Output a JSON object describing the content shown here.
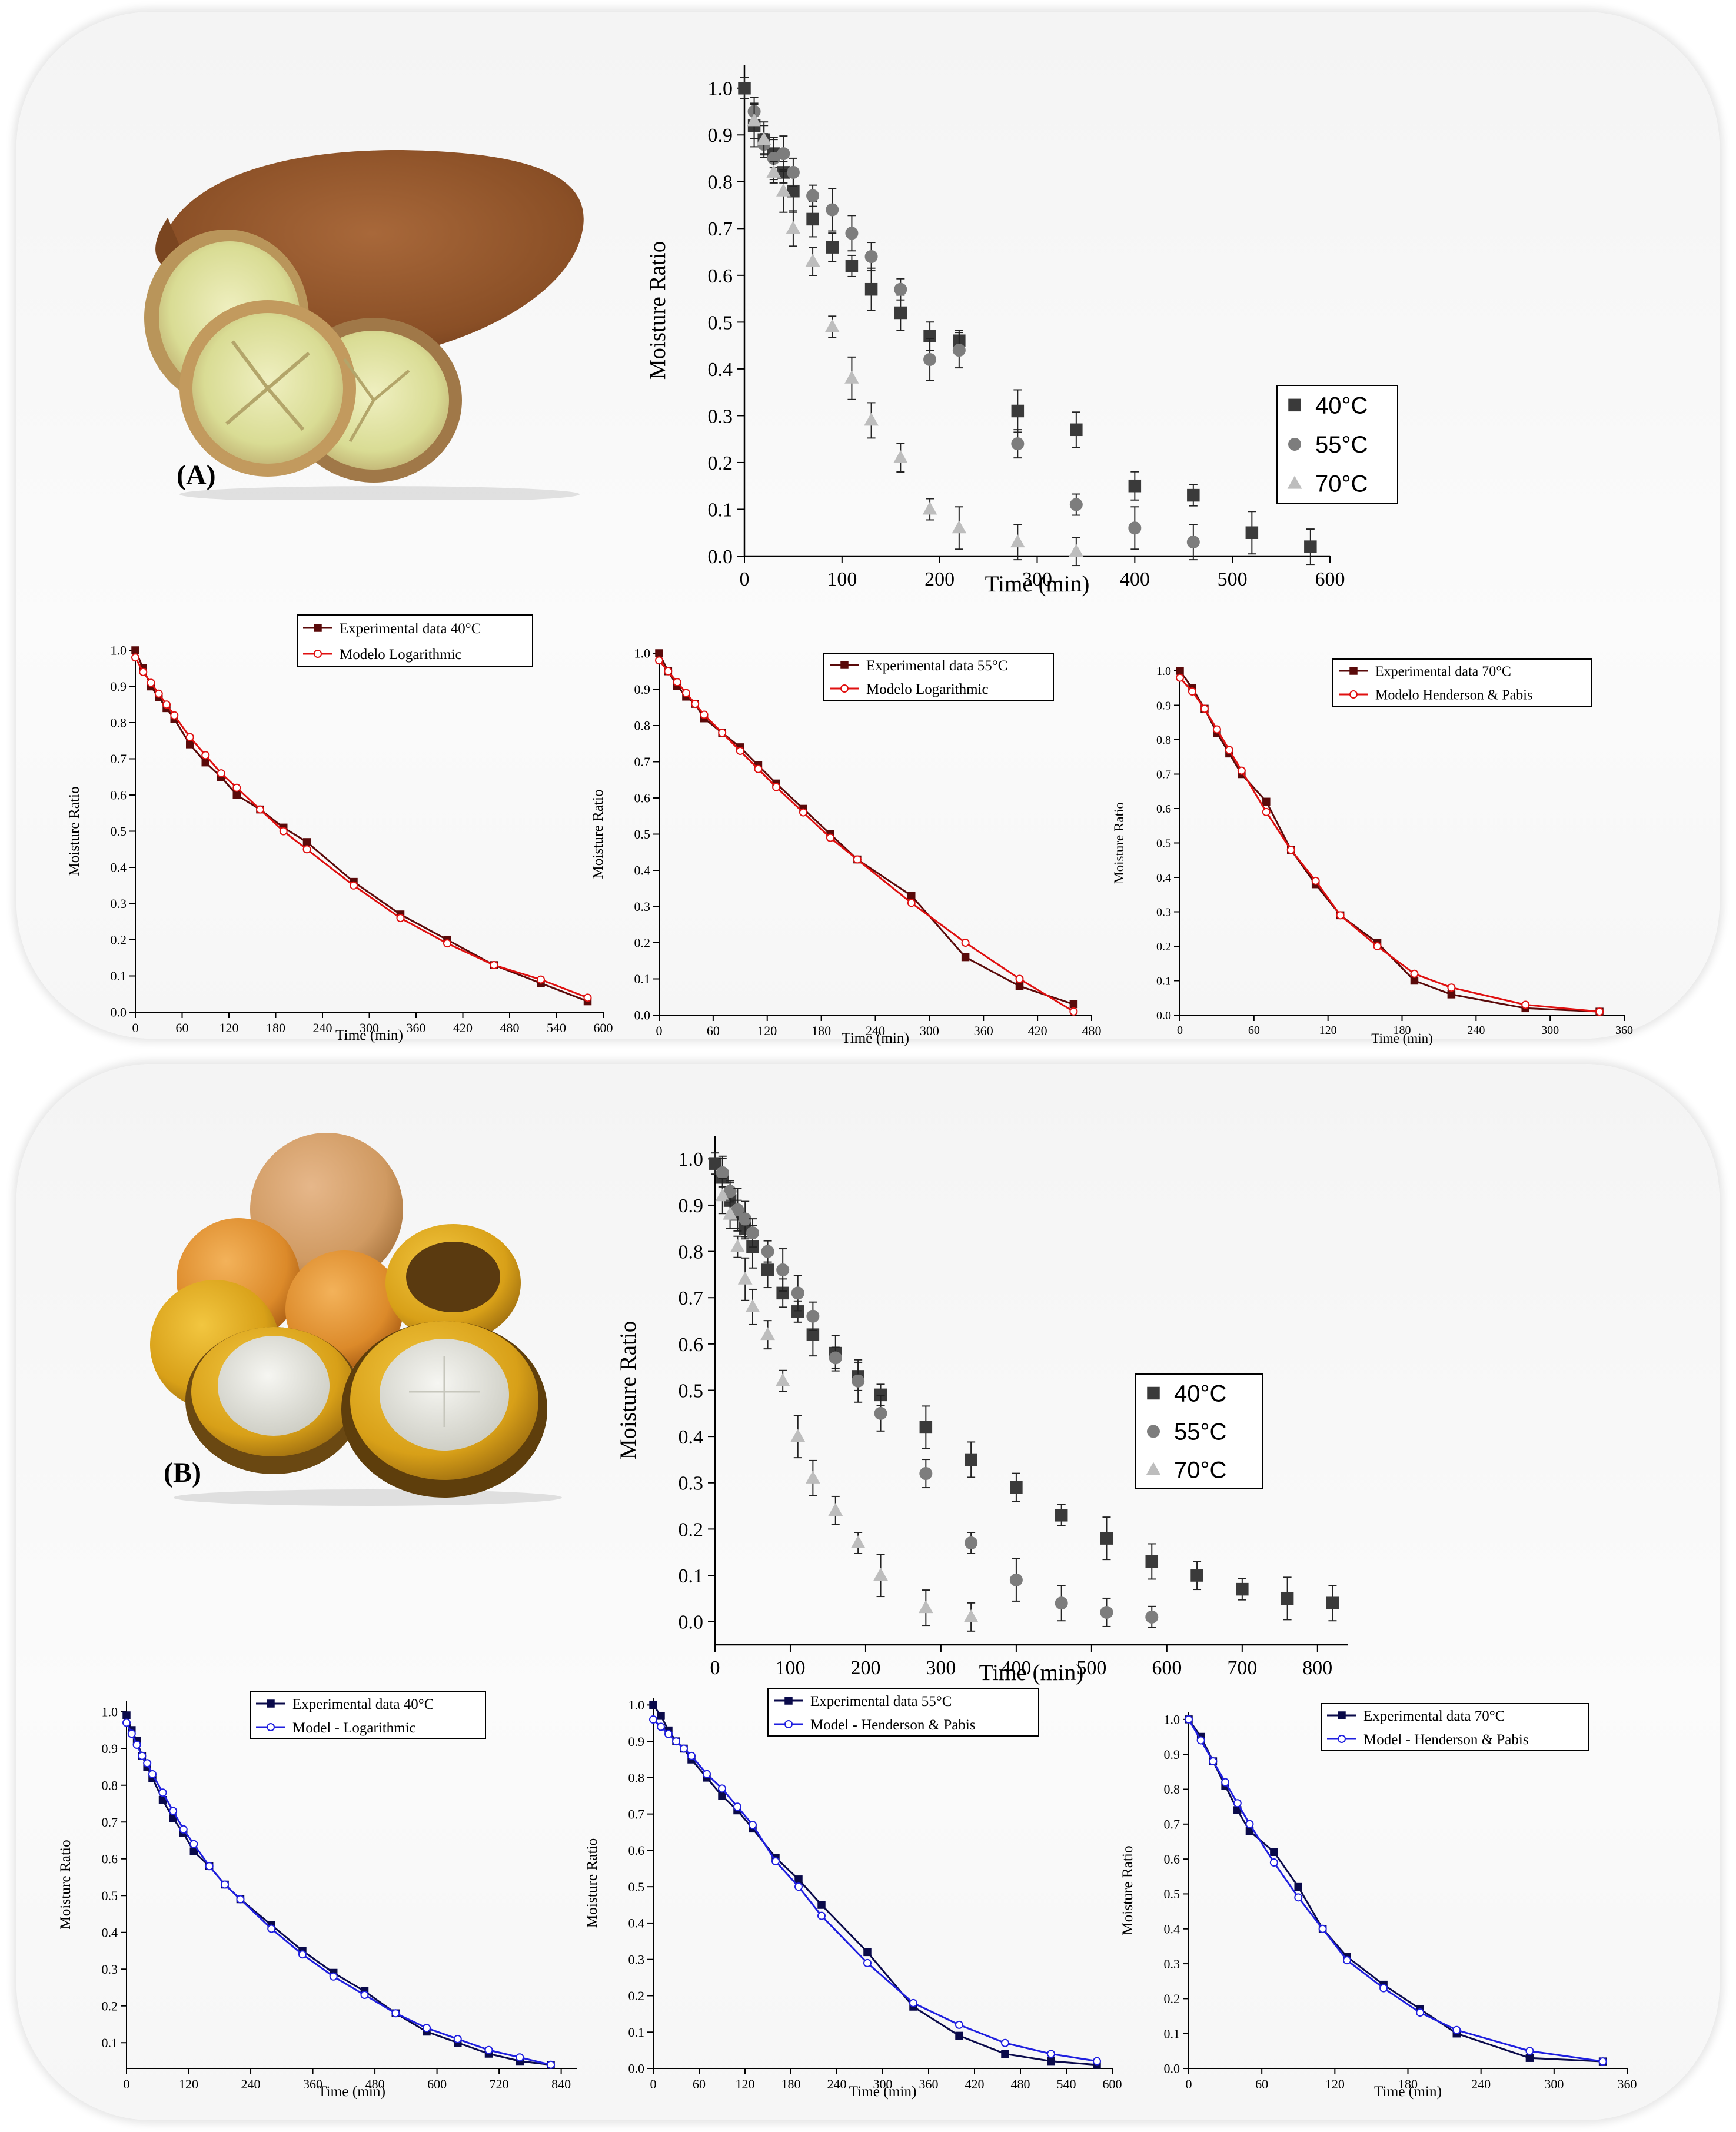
{
  "panels": [
    {
      "label": "(A)",
      "photo_icon": "tamarind-pod-photo"
    },
    {
      "label": "(B)",
      "photo_icon": "round-fruit-photo"
    }
  ],
  "chart_data": [
    {
      "id": "A-main",
      "type": "scatter",
      "xlabel": "Time (min)",
      "ylabel": "Moisture Ratio",
      "xlim": [
        0,
        600
      ],
      "ylim": [
        0,
        1.05
      ],
      "xticks": [
        0,
        100,
        200,
        300,
        400,
        500,
        600
      ],
      "yticks": [
        0.0,
        0.1,
        0.2,
        0.3,
        0.4,
        0.5,
        0.6,
        0.7,
        0.8,
        0.9,
        1.0
      ],
      "ytick_decimals": 1,
      "legend": "right-center",
      "grid": false,
      "series": [
        {
          "name": "40°C",
          "marker": "square",
          "color": "#3a3a3a",
          "x": [
            0,
            10,
            20,
            30,
            40,
            50,
            70,
            90,
            110,
            130,
            160,
            190,
            220,
            280,
            340,
            400,
            460,
            520,
            580
          ],
          "y": [
            1.0,
            0.92,
            0.89,
            0.86,
            0.82,
            0.78,
            0.72,
            0.66,
            0.62,
            0.57,
            0.52,
            0.47,
            0.46,
            0.31,
            0.27,
            0.15,
            0.13,
            0.05,
            0.02
          ]
        },
        {
          "name": "55°C",
          "marker": "circle",
          "color": "#7d7d7d",
          "x": [
            10,
            20,
            30,
            40,
            50,
            70,
            90,
            110,
            130,
            160,
            190,
            220,
            280,
            340,
            400,
            460
          ],
          "y": [
            0.95,
            0.88,
            0.85,
            0.86,
            0.82,
            0.77,
            0.74,
            0.69,
            0.64,
            0.57,
            0.42,
            0.44,
            0.24,
            0.11,
            0.06,
            0.03
          ]
        },
        {
          "name": "70°C",
          "marker": "triangle",
          "color": "#bdbdbd",
          "x": [
            10,
            20,
            30,
            40,
            50,
            70,
            90,
            110,
            130,
            160,
            190,
            220,
            280,
            340
          ],
          "y": [
            0.93,
            0.89,
            0.82,
            0.78,
            0.7,
            0.63,
            0.49,
            0.38,
            0.29,
            0.21,
            0.1,
            0.06,
            0.03,
            0.01
          ]
        }
      ]
    },
    {
      "id": "A-fit40",
      "type": "line",
      "xlabel": "Time (min)",
      "ylabel": "Moisture Ratio",
      "xlim": [
        0,
        600
      ],
      "ylim": [
        0,
        1.0
      ],
      "xticks": [
        0,
        60,
        120,
        180,
        240,
        300,
        360,
        420,
        480,
        540,
        600
      ],
      "yticks": [
        0.0,
        0.1,
        0.2,
        0.3,
        0.4,
        0.5,
        0.6,
        0.7,
        0.8,
        0.9,
        1.0
      ],
      "ytick_decimals": 1,
      "legend": "top-right",
      "grid": false,
      "series": [
        {
          "name": "Experimental data 40°C",
          "marker": "square",
          "color": "#5a0a0a",
          "x": [
            0,
            10,
            20,
            30,
            40,
            50,
            70,
            90,
            110,
            130,
            160,
            190,
            220,
            280,
            340,
            400,
            460,
            520,
            580
          ],
          "y": [
            1.0,
            0.95,
            0.9,
            0.87,
            0.84,
            0.81,
            0.74,
            0.69,
            0.65,
            0.6,
            0.56,
            0.51,
            0.47,
            0.36,
            0.27,
            0.2,
            0.13,
            0.08,
            0.03
          ]
        },
        {
          "name": "Modelo Logarithmic",
          "marker": "circle",
          "color": "#e01010",
          "x": [
            0,
            10,
            20,
            30,
            40,
            50,
            70,
            90,
            110,
            130,
            160,
            190,
            220,
            280,
            340,
            400,
            460,
            520,
            580
          ],
          "y": [
            0.98,
            0.94,
            0.91,
            0.88,
            0.85,
            0.82,
            0.76,
            0.71,
            0.66,
            0.62,
            0.56,
            0.5,
            0.45,
            0.35,
            0.26,
            0.19,
            0.13,
            0.09,
            0.04
          ]
        }
      ]
    },
    {
      "id": "A-fit55",
      "type": "line",
      "xlabel": "Time (min)",
      "ylabel": "Moisture Ratio",
      "xlim": [
        0,
        480
      ],
      "ylim": [
        0,
        1.0
      ],
      "xticks": [
        0,
        60,
        120,
        180,
        240,
        300,
        360,
        420,
        480
      ],
      "yticks": [
        0.0,
        0.1,
        0.2,
        0.3,
        0.4,
        0.5,
        0.6,
        0.7,
        0.8,
        0.9,
        1.0
      ],
      "ytick_decimals": 1,
      "legend": "top-right",
      "grid": false,
      "series": [
        {
          "name": "Experimental data 55°C",
          "marker": "square",
          "color": "#5a0a0a",
          "x": [
            0,
            10,
            20,
            30,
            40,
            50,
            70,
            90,
            110,
            130,
            160,
            190,
            220,
            280,
            340,
            400,
            460
          ],
          "y": [
            1.0,
            0.95,
            0.91,
            0.88,
            0.86,
            0.82,
            0.78,
            0.74,
            0.69,
            0.64,
            0.57,
            0.5,
            0.43,
            0.33,
            0.16,
            0.08,
            0.03
          ]
        },
        {
          "name": "Modelo Logarithmic",
          "marker": "circle",
          "color": "#e01010",
          "x": [
            0,
            10,
            20,
            30,
            40,
            50,
            70,
            90,
            110,
            130,
            160,
            190,
            220,
            280,
            340,
            400,
            460
          ],
          "y": [
            0.98,
            0.95,
            0.92,
            0.89,
            0.86,
            0.83,
            0.78,
            0.73,
            0.68,
            0.63,
            0.56,
            0.49,
            0.43,
            0.31,
            0.2,
            0.1,
            0.01
          ]
        }
      ]
    },
    {
      "id": "A-fit70",
      "type": "line",
      "xlabel": "Time (min)",
      "ylabel": "Moisture Ratio",
      "xlim": [
        0,
        360
      ],
      "ylim": [
        0,
        1.0
      ],
      "xticks": [
        0,
        60,
        120,
        180,
        240,
        300,
        360
      ],
      "yticks": [
        0.0,
        0.1,
        0.2,
        0.3,
        0.4,
        0.5,
        0.6,
        0.7,
        0.8,
        0.9,
        1.0
      ],
      "ytick_decimals": 1,
      "legend": "top-right",
      "grid": false,
      "series": [
        {
          "name": "Experimental data 70°C",
          "marker": "square",
          "color": "#5a0a0a",
          "x": [
            0,
            10,
            20,
            30,
            40,
            50,
            70,
            90,
            110,
            130,
            160,
            190,
            220,
            280,
            340
          ],
          "y": [
            1.0,
            0.95,
            0.89,
            0.82,
            0.76,
            0.7,
            0.62,
            0.48,
            0.38,
            0.29,
            0.21,
            0.1,
            0.06,
            0.02,
            0.01
          ]
        },
        {
          "name": "Modelo Henderson & Pabis",
          "marker": "circle",
          "color": "#e01010",
          "x": [
            0,
            10,
            20,
            30,
            40,
            50,
            70,
            90,
            110,
            130,
            160,
            190,
            220,
            280,
            340
          ],
          "y": [
            0.98,
            0.94,
            0.89,
            0.83,
            0.77,
            0.71,
            0.59,
            0.48,
            0.39,
            0.29,
            0.2,
            0.12,
            0.08,
            0.03,
            0.01
          ]
        }
      ]
    },
    {
      "id": "B-main",
      "type": "scatter",
      "xlabel": "Time (min)",
      "ylabel": "Moisture Ratio",
      "xlim": [
        0,
        840
      ],
      "ylim": [
        -0.05,
        1.05
      ],
      "xticks": [
        0,
        100,
        200,
        300,
        400,
        500,
        600,
        700,
        800
      ],
      "yticks": [
        0.0,
        0.1,
        0.2,
        0.3,
        0.4,
        0.5,
        0.6,
        0.7,
        0.8,
        0.9,
        1.0
      ],
      "ytick_decimals": 1,
      "legend": "right-center",
      "grid": false,
      "series": [
        {
          "name": "40°C",
          "marker": "square",
          "color": "#3a3a3a",
          "x": [
            0,
            10,
            20,
            30,
            40,
            50,
            70,
            90,
            110,
            130,
            160,
            190,
            220,
            280,
            340,
            400,
            460,
            520,
            580,
            640,
            700,
            760,
            820
          ],
          "y": [
            0.99,
            0.96,
            0.91,
            0.88,
            0.85,
            0.81,
            0.76,
            0.71,
            0.67,
            0.62,
            0.58,
            0.53,
            0.49,
            0.42,
            0.35,
            0.29,
            0.23,
            0.18,
            0.13,
            0.1,
            0.07,
            0.05,
            0.04
          ]
        },
        {
          "name": "55°C",
          "marker": "circle",
          "color": "#7d7d7d",
          "x": [
            10,
            20,
            30,
            40,
            50,
            70,
            90,
            110,
            130,
            160,
            190,
            220,
            280,
            340,
            400,
            460,
            520,
            580
          ],
          "y": [
            0.97,
            0.93,
            0.89,
            0.87,
            0.84,
            0.8,
            0.76,
            0.71,
            0.66,
            0.57,
            0.52,
            0.45,
            0.32,
            0.17,
            0.09,
            0.04,
            0.02,
            0.01
          ]
        },
        {
          "name": "70°C",
          "marker": "triangle",
          "color": "#bdbdbd",
          "x": [
            10,
            20,
            30,
            40,
            50,
            70,
            90,
            110,
            130,
            160,
            190,
            220,
            280,
            340
          ],
          "y": [
            0.92,
            0.88,
            0.81,
            0.74,
            0.68,
            0.62,
            0.52,
            0.4,
            0.31,
            0.24,
            0.17,
            0.1,
            0.03,
            0.01
          ]
        }
      ]
    },
    {
      "id": "B-fit40",
      "type": "line",
      "xlabel": "Time (min)",
      "ylabel": "Moisture Ratio",
      "xlim": [
        0,
        870
      ],
      "ylim": [
        0.03,
        1.03
      ],
      "xticks": [
        0,
        120,
        240,
        360,
        480,
        600,
        720,
        840
      ],
      "yticks": [
        0.1,
        0.2,
        0.3,
        0.4,
        0.5,
        0.6,
        0.7,
        0.8,
        0.9,
        1.0
      ],
      "ytick_decimals": 1,
      "legend": "top-right",
      "grid": false,
      "series": [
        {
          "name": "Experimental data 40°C",
          "marker": "square",
          "color": "#0a0a4a",
          "x": [
            0,
            10,
            20,
            30,
            40,
            50,
            70,
            90,
            110,
            130,
            160,
            190,
            220,
            280,
            340,
            400,
            460,
            520,
            580,
            640,
            700,
            760,
            820
          ],
          "y": [
            0.99,
            0.95,
            0.92,
            0.88,
            0.85,
            0.82,
            0.76,
            0.71,
            0.67,
            0.62,
            0.58,
            0.53,
            0.49,
            0.42,
            0.35,
            0.29,
            0.24,
            0.18,
            0.13,
            0.1,
            0.07,
            0.05,
            0.04
          ]
        },
        {
          "name": "Model - Logarithmic",
          "marker": "circle",
          "color": "#1f1fe0",
          "x": [
            0,
            10,
            20,
            30,
            40,
            50,
            70,
            90,
            110,
            130,
            160,
            190,
            220,
            280,
            340,
            400,
            460,
            520,
            580,
            640,
            700,
            760,
            820
          ],
          "y": [
            0.97,
            0.94,
            0.91,
            0.88,
            0.86,
            0.83,
            0.78,
            0.73,
            0.68,
            0.64,
            0.58,
            0.53,
            0.49,
            0.41,
            0.34,
            0.28,
            0.23,
            0.18,
            0.14,
            0.11,
            0.08,
            0.06,
            0.04
          ]
        }
      ]
    },
    {
      "id": "B-fit55",
      "type": "line",
      "xlabel": "Time (min)",
      "ylabel": "Moisture Ratio",
      "xlim": [
        0,
        600
      ],
      "ylim": [
        0,
        1.02
      ],
      "xticks": [
        0,
        60,
        120,
        180,
        240,
        300,
        360,
        420,
        480,
        540,
        600
      ],
      "yticks": [
        0.0,
        0.1,
        0.2,
        0.3,
        0.4,
        0.5,
        0.6,
        0.7,
        0.8,
        0.9,
        1.0
      ],
      "ytick_decimals": 1,
      "legend": "top-right",
      "grid": false,
      "series": [
        {
          "name": "Experimental data  55°C",
          "marker": "square",
          "color": "#0a0a4a",
          "x": [
            0,
            10,
            20,
            30,
            40,
            50,
            70,
            90,
            110,
            130,
            160,
            190,
            220,
            280,
            340,
            400,
            460,
            520,
            580
          ],
          "y": [
            1.0,
            0.97,
            0.93,
            0.9,
            0.88,
            0.85,
            0.8,
            0.75,
            0.71,
            0.66,
            0.58,
            0.52,
            0.45,
            0.32,
            0.17,
            0.09,
            0.04,
            0.02,
            0.01
          ]
        },
        {
          "name": "Model - Henderson & Pabis",
          "marker": "circle",
          "color": "#1f1fe0",
          "x": [
            0,
            10,
            20,
            30,
            40,
            50,
            70,
            90,
            110,
            130,
            160,
            190,
            220,
            280,
            340,
            400,
            460,
            520,
            580
          ],
          "y": [
            0.96,
            0.94,
            0.92,
            0.9,
            0.88,
            0.86,
            0.81,
            0.77,
            0.72,
            0.67,
            0.57,
            0.5,
            0.42,
            0.29,
            0.18,
            0.12,
            0.07,
            0.04,
            0.02
          ]
        }
      ]
    },
    {
      "id": "B-fit70",
      "type": "line",
      "xlabel": "Time (min)",
      "ylabel": "Moisture Ratio",
      "xlim": [
        0,
        360
      ],
      "ylim": [
        0,
        1.02
      ],
      "xticks": [
        0,
        60,
        120,
        180,
        240,
        300,
        360
      ],
      "yticks": [
        0.0,
        0.1,
        0.2,
        0.3,
        0.4,
        0.5,
        0.6,
        0.7,
        0.8,
        0.9,
        1.0
      ],
      "ytick_decimals": 1,
      "legend": "top-right",
      "grid": false,
      "series": [
        {
          "name": "Experimental data 70°C",
          "marker": "square",
          "color": "#0a0a4a",
          "x": [
            0,
            10,
            20,
            30,
            40,
            50,
            70,
            90,
            110,
            130,
            160,
            190,
            220,
            280,
            340
          ],
          "y": [
            1.0,
            0.95,
            0.88,
            0.81,
            0.74,
            0.68,
            0.62,
            0.52,
            0.4,
            0.32,
            0.24,
            0.17,
            0.1,
            0.03,
            0.02
          ]
        },
        {
          "name": "Model - Henderson & Pabis",
          "marker": "circle",
          "color": "#1f1fe0",
          "x": [
            0,
            10,
            20,
            30,
            40,
            50,
            70,
            90,
            110,
            130,
            160,
            190,
            220,
            280,
            340
          ],
          "y": [
            1.0,
            0.94,
            0.88,
            0.82,
            0.76,
            0.7,
            0.59,
            0.49,
            0.4,
            0.31,
            0.23,
            0.16,
            0.11,
            0.05,
            0.02
          ]
        }
      ]
    }
  ]
}
